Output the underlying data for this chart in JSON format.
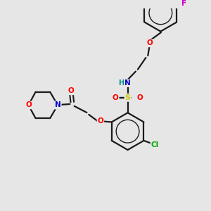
{
  "bg_color": "#e6e6e6",
  "bond_color": "#1a1a1a",
  "colors": {
    "O": "#ff0000",
    "N": "#0000cc",
    "S": "#cccc00",
    "Cl": "#00aa00",
    "F": "#cc00cc",
    "H": "#008888",
    "C": "#1a1a1a"
  },
  "figsize": [
    3.0,
    3.0
  ],
  "dpi": 100
}
